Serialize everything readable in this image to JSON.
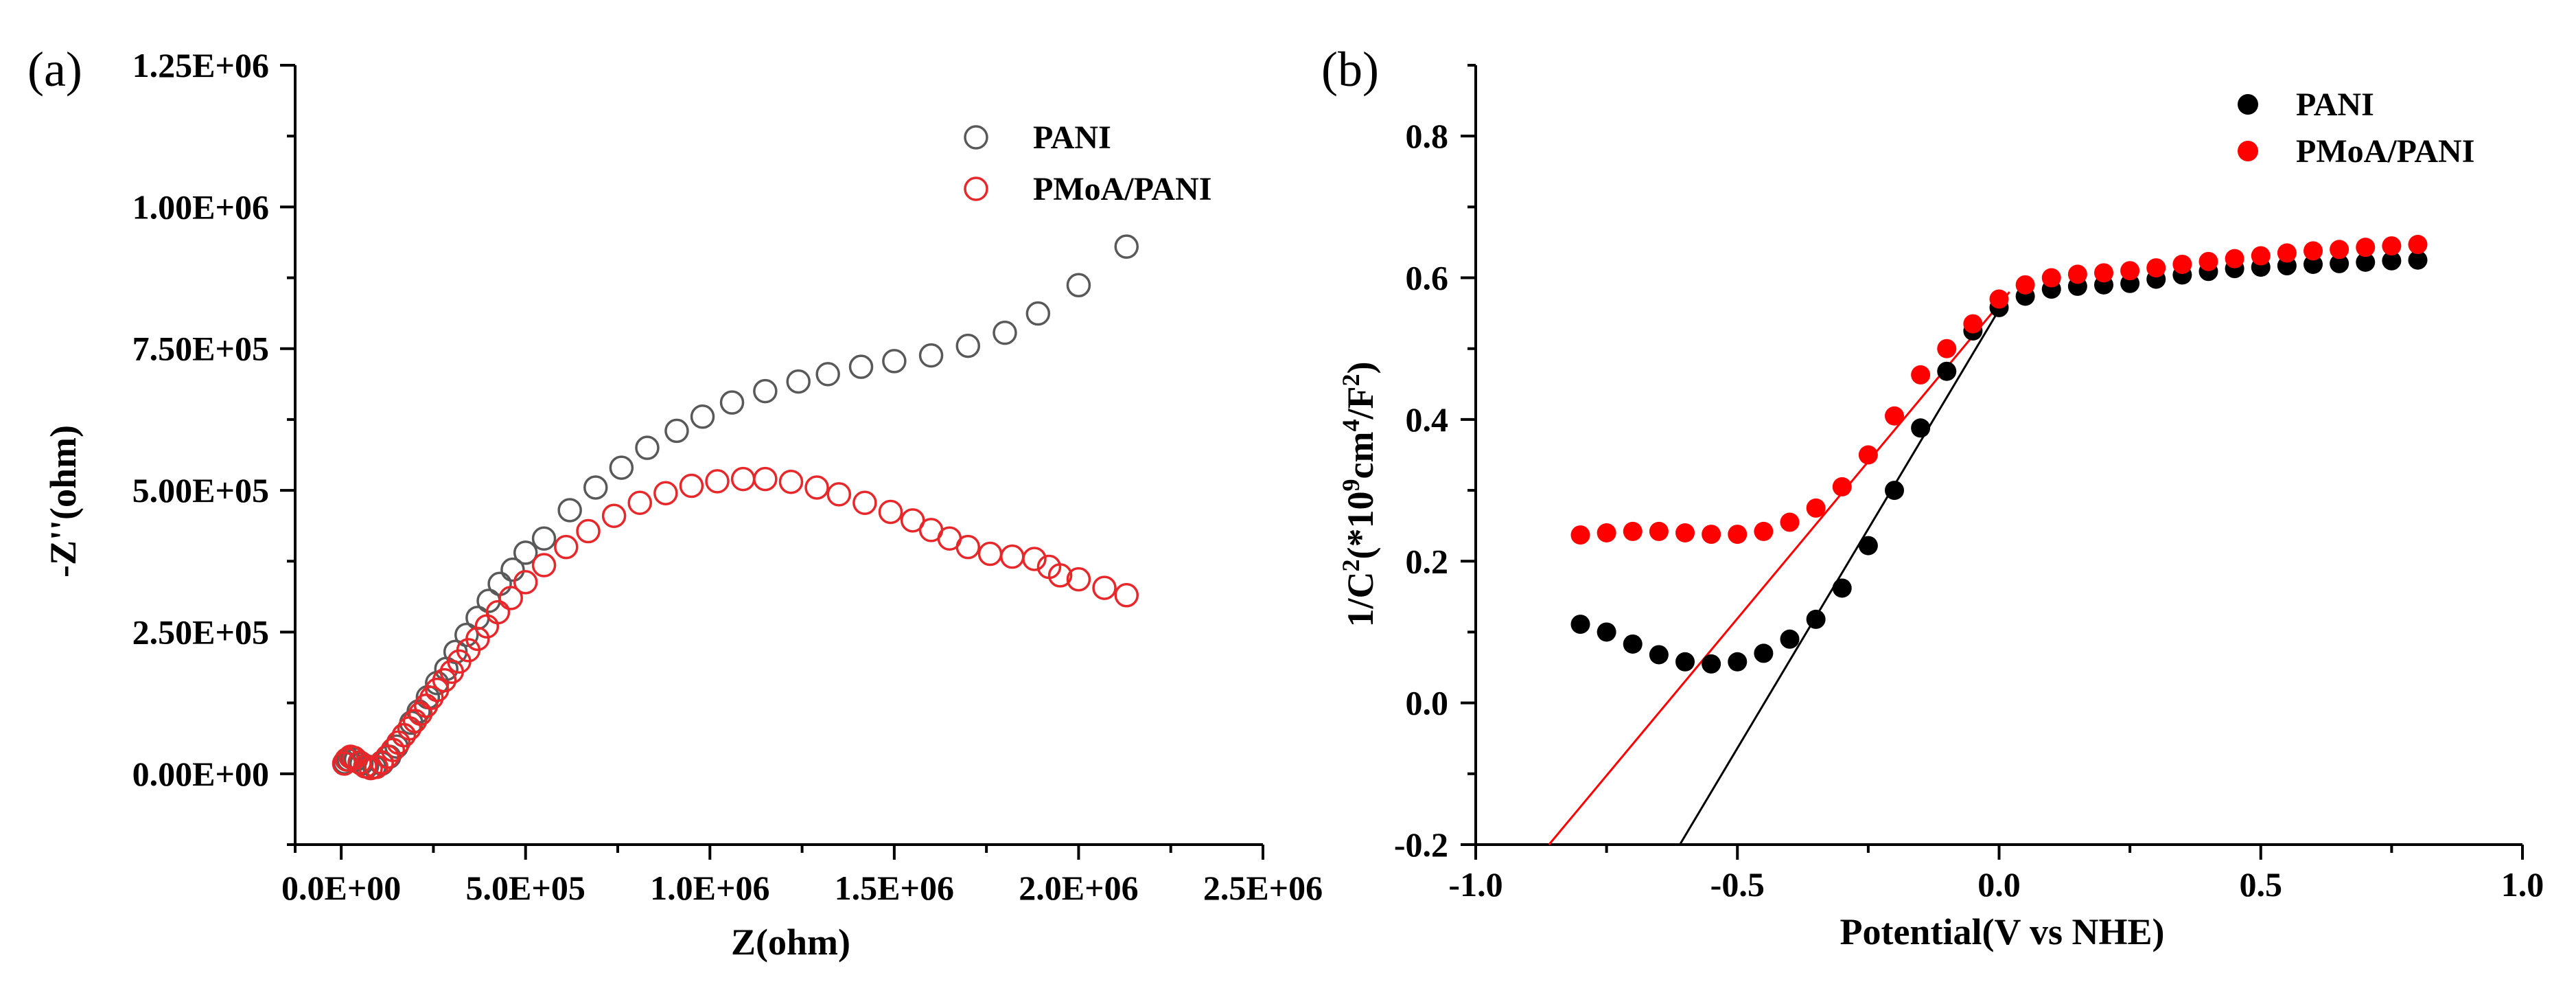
{
  "chart_data": [
    {
      "type": "scatter",
      "panel_label": "(a)",
      "xlabel": "Z(ohm)",
      "ylabel": "-Z''(ohm)",
      "xlim": [
        -125000,
        2500000
      ],
      "ylim": [
        -125000,
        1250000
      ],
      "xticks": [
        0,
        500000,
        1000000,
        1500000,
        2000000,
        2500000
      ],
      "xtick_labels": [
        "0.0E+00",
        "5.0E+05",
        "1.0E+06",
        "1.5E+06",
        "2.0E+06",
        "2.5E+06"
      ],
      "yticks": [
        0,
        250000,
        500000,
        750000,
        1000000,
        1250000
      ],
      "ytick_labels": [
        "0.00E+00",
        "2.50E+05",
        "5.00E+05",
        "7.50E+05",
        "1.00E+06",
        "1.25E+06"
      ],
      "marker": "open-circle",
      "legend_position": "top-right",
      "series": [
        {
          "name": "PANI",
          "color": "#595959",
          "x": [
            10000,
            20000,
            30000,
            40000,
            55000,
            70000,
            90000,
            110000,
            130000,
            150000,
            170000,
            190000,
            210000,
            235000,
            260000,
            285000,
            310000,
            340000,
            370000,
            400000,
            430000,
            465000,
            500000,
            550000,
            620000,
            690000,
            760000,
            830000,
            910000,
            980000,
            1060000,
            1150000,
            1240000,
            1320000,
            1410000,
            1500000,
            1600000,
            1700000,
            1800000,
            1890000,
            2000000,
            2130000
          ],
          "y": [
            20000,
            25000,
            28000,
            25000,
            18000,
            13000,
            12000,
            18000,
            30000,
            48000,
            68000,
            90000,
            110000,
            135000,
            160000,
            185000,
            215000,
            245000,
            275000,
            305000,
            335000,
            360000,
            390000,
            415000,
            465000,
            505000,
            540000,
            575000,
            605000,
            630000,
            655000,
            675000,
            692000,
            705000,
            718000,
            728000,
            738000,
            755000,
            778000,
            812000,
            862000,
            930000
          ]
        },
        {
          "name": "PMoA/PANI",
          "color": "#e8272a",
          "x": [
            8000,
            15000,
            25000,
            35000,
            50000,
            65000,
            80000,
            95000,
            110000,
            125000,
            140000,
            155000,
            170000,
            185000,
            200000,
            215000,
            230000,
            245000,
            260000,
            280000,
            300000,
            320000,
            345000,
            370000,
            395000,
            425000,
            460000,
            500000,
            550000,
            610000,
            670000,
            740000,
            810000,
            880000,
            950000,
            1020000,
            1090000,
            1150000,
            1220000,
            1290000,
            1350000,
            1420000,
            1490000,
            1550000,
            1600000,
            1650000,
            1700000,
            1760000,
            1820000,
            1880000,
            1920000,
            1950000,
            2000000,
            2070000,
            2130000
          ],
          "y": [
            18000,
            25000,
            30000,
            28000,
            20000,
            13000,
            10000,
            12000,
            20000,
            30000,
            42000,
            55000,
            68000,
            80000,
            93000,
            106000,
            120000,
            134000,
            148000,
            165000,
            180000,
            198000,
            218000,
            238000,
            260000,
            285000,
            310000,
            338000,
            368000,
            400000,
            428000,
            455000,
            478000,
            495000,
            508000,
            516000,
            520000,
            520000,
            515000,
            505000,
            493000,
            478000,
            462000,
            447000,
            430000,
            415000,
            400000,
            388000,
            383000,
            379000,
            365000,
            350000,
            343000,
            328000,
            315000
          ]
        }
      ]
    },
    {
      "type": "scatter",
      "panel_label": "(b)",
      "xlabel": "Potential(V vs NHE)",
      "ylabel_parts": [
        "1/C",
        "2",
        "(*10",
        "9",
        "cm",
        "4",
        "/F",
        "2",
        ")"
      ],
      "xlim": [
        -1.0,
        1.0
      ],
      "ylim": [
        -0.2,
        0.9
      ],
      "xticks": [
        -1.0,
        -0.5,
        0.0,
        0.5,
        1.0
      ],
      "xtick_labels": [
        "-1.0",
        "-0.5",
        "0.0",
        "0.5",
        "1.0"
      ],
      "yticks": [
        -0.2,
        0.0,
        0.2,
        0.4,
        0.6,
        0.8
      ],
      "ytick_labels": [
        "-0.2",
        "0.0",
        "0.2",
        "0.4",
        "0.6",
        "0.8"
      ],
      "marker": "filled-circle",
      "legend_position": "top-right",
      "series": [
        {
          "name": "PANI",
          "color": "#000000",
          "x": [
            -0.8,
            -0.75,
            -0.7,
            -0.65,
            -0.6,
            -0.55,
            -0.5,
            -0.45,
            -0.4,
            -0.35,
            -0.3,
            -0.25,
            -0.2,
            -0.15,
            -0.1,
            -0.05,
            0.0,
            0.05,
            0.1,
            0.15,
            0.2,
            0.25,
            0.3,
            0.35,
            0.4,
            0.45,
            0.5,
            0.55,
            0.6,
            0.65,
            0.7,
            0.75,
            0.8
          ],
          "y": [
            0.111,
            0.1,
            0.083,
            0.068,
            0.058,
            0.055,
            0.058,
            0.07,
            0.09,
            0.118,
            0.162,
            0.222,
            0.3,
            0.388,
            0.468,
            0.525,
            0.558,
            0.574,
            0.584,
            0.588,
            0.59,
            0.592,
            0.598,
            0.604,
            0.609,
            0.613,
            0.615,
            0.617,
            0.619,
            0.62,
            0.622,
            0.624,
            0.625
          ]
        },
        {
          "name": "PMoA/PANI",
          "color": "#ff0000",
          "x": [
            -0.8,
            -0.75,
            -0.7,
            -0.65,
            -0.6,
            -0.55,
            -0.5,
            -0.45,
            -0.4,
            -0.35,
            -0.3,
            -0.25,
            -0.2,
            -0.15,
            -0.1,
            -0.05,
            0.0,
            0.05,
            0.1,
            0.15,
            0.2,
            0.25,
            0.3,
            0.35,
            0.4,
            0.45,
            0.5,
            0.55,
            0.6,
            0.65,
            0.7,
            0.75,
            0.8
          ],
          "y": [
            0.237,
            0.24,
            0.242,
            0.242,
            0.24,
            0.238,
            0.238,
            0.242,
            0.255,
            0.275,
            0.305,
            0.35,
            0.405,
            0.463,
            0.5,
            0.535,
            0.57,
            0.59,
            0.6,
            0.605,
            0.607,
            0.61,
            0.614,
            0.619,
            0.623,
            0.627,
            0.631,
            0.635,
            0.638,
            0.64,
            0.643,
            0.645,
            0.647
          ]
        }
      ],
      "fit_lines": [
        {
          "series": "PANI",
          "color": "#000000",
          "x": [
            -0.61,
            0.0
          ],
          "y": [
            -0.2,
            0.555
          ]
        },
        {
          "series": "PMoA/PANI",
          "color": "#ff0000",
          "x": [
            -0.86,
            0.02
          ],
          "y": [
            -0.2,
            0.58
          ]
        }
      ]
    }
  ]
}
